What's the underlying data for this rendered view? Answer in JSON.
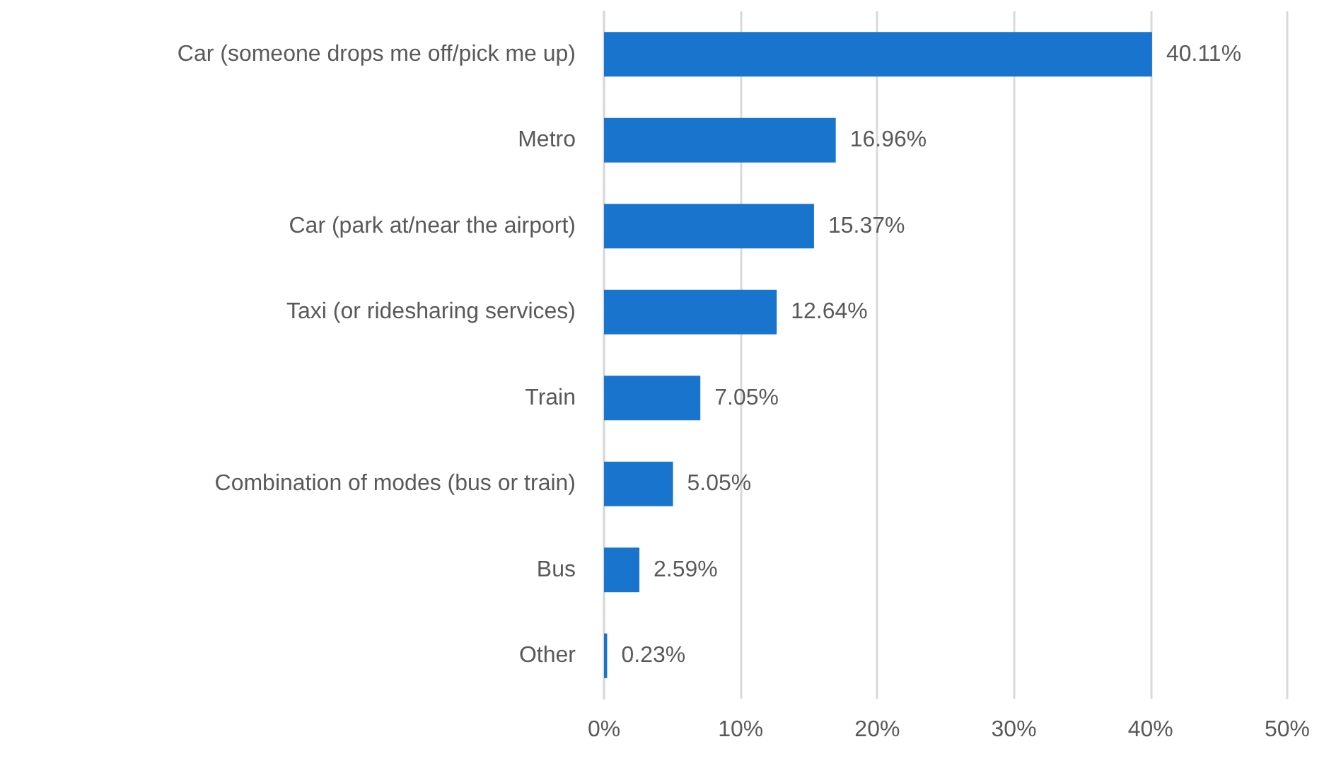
{
  "chart_data": {
    "type": "bar",
    "orientation": "horizontal",
    "categories": [
      "Car (someone drops me off/pick me up)",
      "Metro",
      "Car (park at/near the airport)",
      "Taxi (or ridesharing services)",
      "Train",
      "Combination of modes (bus or train)",
      "Bus",
      "Other"
    ],
    "values": [
      40.11,
      16.96,
      15.37,
      12.64,
      7.05,
      5.05,
      2.59,
      0.23
    ],
    "value_labels": [
      "40.11%",
      "16.96%",
      "15.37%",
      "12.64%",
      "7.05%",
      "5.05%",
      "2.59%",
      "0.23%"
    ],
    "color": "#1874cd",
    "xlim": [
      0,
      50
    ],
    "xticks": [
      {
        "value": 0,
        "label": "0%"
      },
      {
        "value": 10,
        "label": "10%"
      },
      {
        "value": 20,
        "label": "20%"
      },
      {
        "value": 30,
        "label": "30%"
      },
      {
        "value": 40,
        "label": "40%"
      },
      {
        "value": 50,
        "label": "50%"
      }
    ],
    "grid": "x"
  }
}
